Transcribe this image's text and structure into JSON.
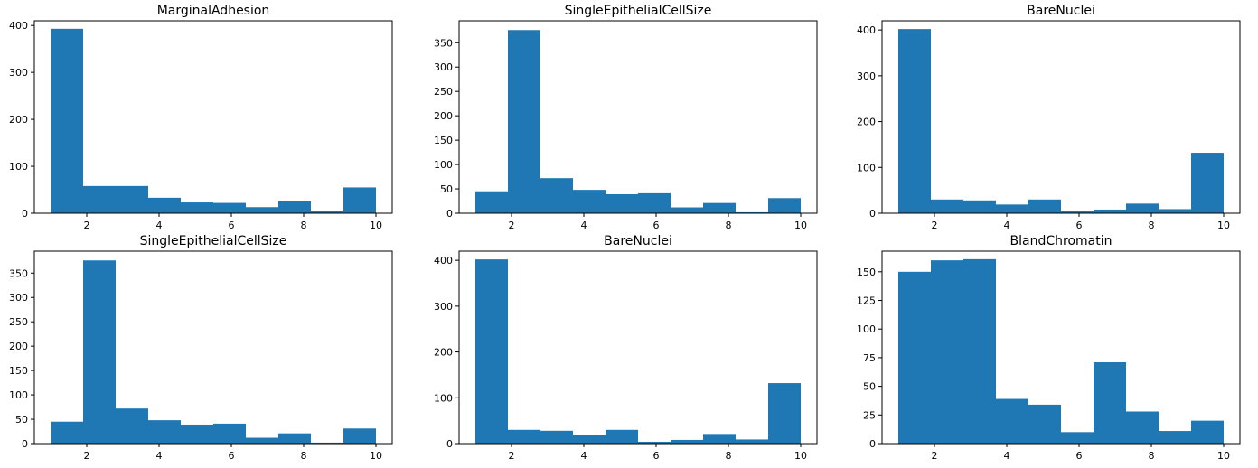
{
  "chart_data": [
    {
      "type": "bar",
      "title": "MarginalAdhesion",
      "xlim": [
        0.55,
        10.45
      ],
      "ylim": [
        0,
        410
      ],
      "xticks": [
        2,
        4,
        6,
        8,
        10
      ],
      "yticks": [
        0,
        100,
        200,
        300,
        400
      ],
      "bin_edges": [
        1,
        1.9,
        2.8,
        3.7,
        4.6,
        5.5,
        6.4,
        7.3,
        8.2,
        9.1,
        10
      ],
      "values": [
        393,
        58,
        58,
        33,
        23,
        22,
        13,
        25,
        5,
        55
      ]
    },
    {
      "type": "bar",
      "title": "SingleEpithelialCellSize",
      "xlim": [
        0.55,
        10.45
      ],
      "ylim": [
        0,
        395
      ],
      "xticks": [
        2,
        4,
        6,
        8,
        10
      ],
      "yticks": [
        0,
        50,
        100,
        150,
        200,
        250,
        300,
        350
      ],
      "bin_edges": [
        1,
        1.9,
        2.8,
        3.7,
        4.6,
        5.5,
        6.4,
        7.3,
        8.2,
        9.1,
        10
      ],
      "values": [
        45,
        376,
        72,
        48,
        39,
        41,
        12,
        21,
        2,
        31
      ]
    },
    {
      "type": "bar",
      "title": "BareNuclei",
      "xlim": [
        0.55,
        10.45
      ],
      "ylim": [
        0,
        420
      ],
      "xticks": [
        2,
        4,
        6,
        8,
        10
      ],
      "yticks": [
        0,
        100,
        200,
        300,
        400
      ],
      "bin_edges": [
        1,
        1.9,
        2.8,
        3.7,
        4.6,
        5.5,
        6.4,
        7.3,
        8.2,
        9.1,
        10
      ],
      "values": [
        402,
        30,
        28,
        19,
        30,
        4,
        8,
        21,
        9,
        132
      ]
    },
    {
      "type": "bar",
      "title": "SingleEpithelialCellSize",
      "xlim": [
        0.55,
        10.45
      ],
      "ylim": [
        0,
        395
      ],
      "xticks": [
        2,
        4,
        6,
        8,
        10
      ],
      "yticks": [
        0,
        50,
        100,
        150,
        200,
        250,
        300,
        350
      ],
      "bin_edges": [
        1,
        1.9,
        2.8,
        3.7,
        4.6,
        5.5,
        6.4,
        7.3,
        8.2,
        9.1,
        10
      ],
      "values": [
        45,
        376,
        72,
        48,
        39,
        41,
        12,
        21,
        2,
        31
      ]
    },
    {
      "type": "bar",
      "title": "BareNuclei",
      "xlim": [
        0.55,
        10.45
      ],
      "ylim": [
        0,
        420
      ],
      "xticks": [
        2,
        4,
        6,
        8,
        10
      ],
      "yticks": [
        0,
        100,
        200,
        300,
        400
      ],
      "bin_edges": [
        1,
        1.9,
        2.8,
        3.7,
        4.6,
        5.5,
        6.4,
        7.3,
        8.2,
        9.1,
        10
      ],
      "values": [
        402,
        30,
        28,
        19,
        30,
        4,
        8,
        21,
        9,
        132
      ]
    },
    {
      "type": "bar",
      "title": "BlandChromatin",
      "xlim": [
        0.55,
        10.45
      ],
      "ylim": [
        0,
        168
      ],
      "xticks": [
        2,
        4,
        6,
        8,
        10
      ],
      "yticks": [
        0,
        25,
        50,
        75,
        100,
        125,
        150
      ],
      "bin_edges": [
        1,
        1.9,
        2.8,
        3.7,
        4.6,
        5.5,
        6.4,
        7.3,
        8.2,
        9.1,
        10
      ],
      "values": [
        150,
        160,
        161,
        39,
        34,
        10,
        71,
        28,
        11,
        20
      ]
    }
  ],
  "colors": {
    "bar": "#1f77b4",
    "axis": "#000000",
    "background": "#ffffff"
  }
}
